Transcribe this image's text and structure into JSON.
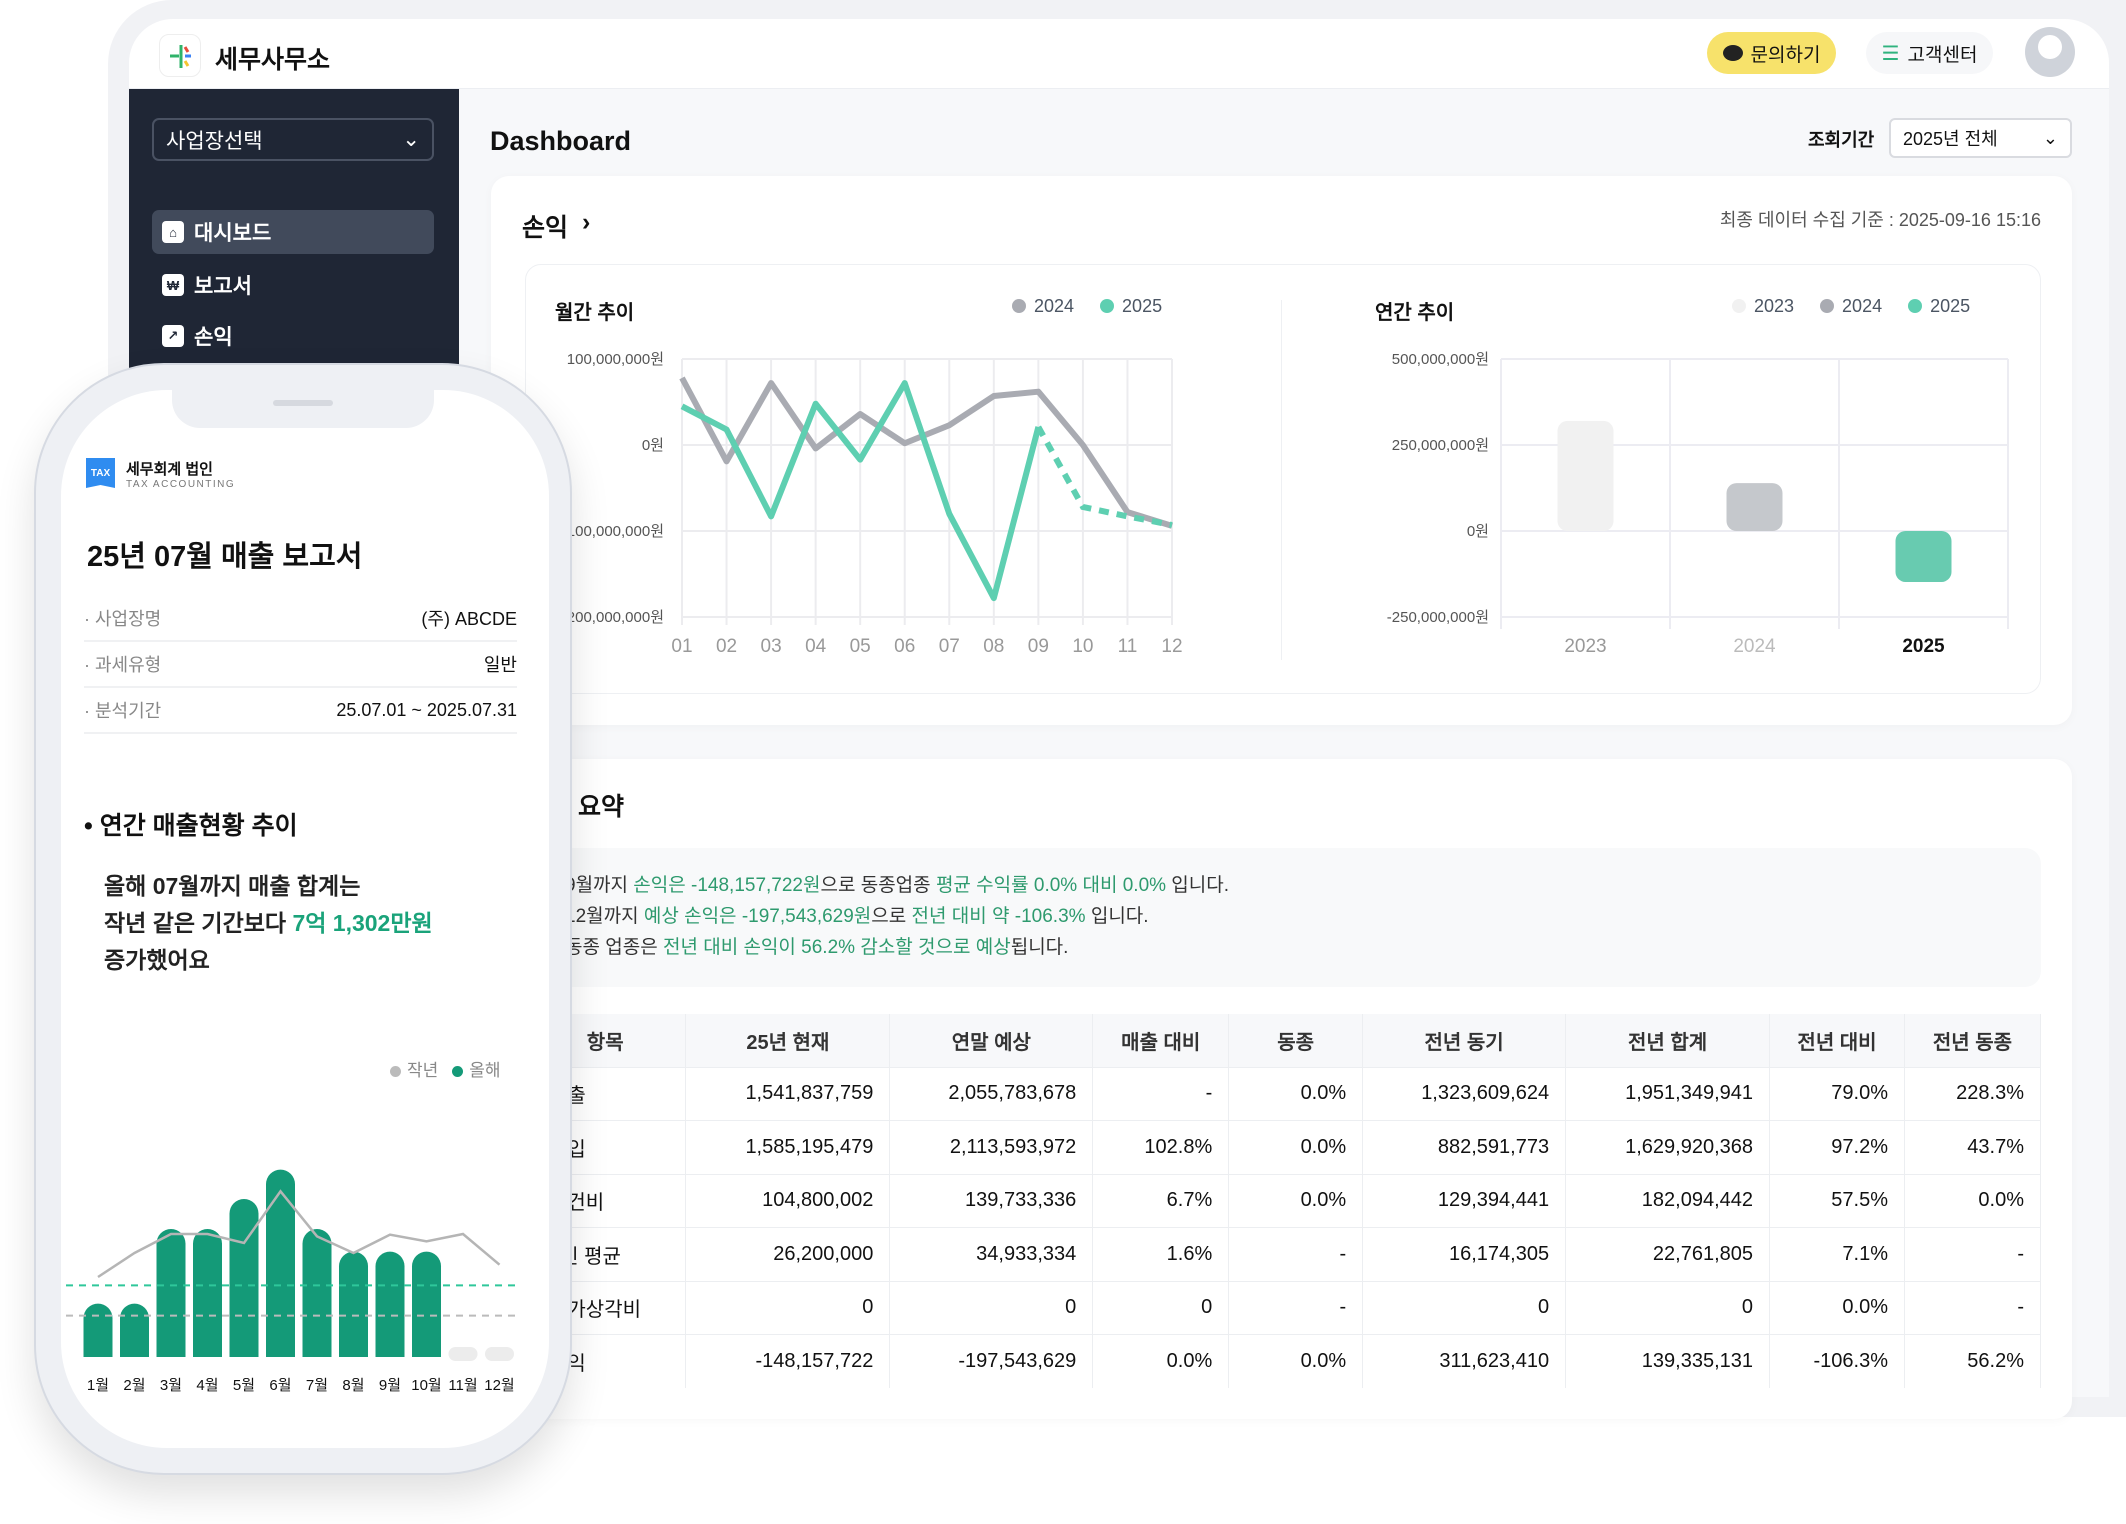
{
  "header": {
    "brand": "세무사무소",
    "ask_label": "문의하기",
    "cs_label": "고객센터"
  },
  "sidebar": {
    "select": "사업장선택",
    "items": [
      {
        "label": "대시보드",
        "icon": "home-icon",
        "active": true
      },
      {
        "label": "보고서",
        "icon": "won-document-icon"
      },
      {
        "label": "손익",
        "icon": "trend-chart-icon"
      }
    ]
  },
  "main": {
    "title": "Dashboard",
    "period_label": "조회기간",
    "period_value": "2025년 전체",
    "profit_card": {
      "title": "손익",
      "timestamp": "최종 데이터 수집 기준 : 2025-09-16 15:16"
    },
    "summary_card": {
      "title": "손익 요약",
      "lines": [
        [
          {
            "t": "9월까지 "
          },
          {
            "t": "손익은 -148,157,722원",
            "g": 1
          },
          {
            "t": "으로 동종업종 "
          },
          {
            "t": "평균 수익률 0.0% 대비 0.0%",
            "g": 1
          },
          {
            "t": " 입니다."
          }
        ],
        [
          {
            "t": "12월까지 "
          },
          {
            "t": "예상 손익은 -197,543,629원",
            "g": 1
          },
          {
            "t": "으로 "
          },
          {
            "t": "전년 대비 약 -106.3%",
            "g": 1
          },
          {
            "t": " 입니다."
          }
        ],
        [
          {
            "t": "동종 업종은 "
          },
          {
            "t": "전년 대비 손익이 56.2% 감소할 것으로 예상",
            "g": 1
          },
          {
            "t": "됩니다."
          }
        ]
      ],
      "table": {
        "headers": [
          "항목",
          "25년 현재",
          "연말 예상",
          "매출 대비",
          "동종",
          "전년 동기",
          "전년 합계",
          "전년 대비",
          "전년 동종"
        ],
        "rows": [
          [
            "매출",
            "1,541,837,759",
            "2,055,783,678",
            "-",
            "0.0%",
            "1,323,609,624",
            "1,951,349,941",
            "79.0%",
            "228.3%"
          ],
          [
            "매입",
            "1,585,195,479",
            "2,113,593,972",
            "102.8%",
            "0.0%",
            "882,591,773",
            "1,629,920,368",
            "97.2%",
            "43.7%"
          ],
          [
            "인건비",
            "104,800,002",
            "139,733,336",
            "6.7%",
            "0.0%",
            "129,394,441",
            "182,094,442",
            "57.5%",
            "0.0%"
          ],
          [
            "1인 평균",
            "26,200,000",
            "34,933,334",
            "1.6%",
            "-",
            "16,174,305",
            "22,761,805",
            "7.1%",
            "-"
          ],
          [
            "감가상각비",
            "0",
            "0",
            "0",
            "-",
            "0",
            "0",
            "0.0%",
            "-"
          ],
          [
            "손익",
            "-148,157,722",
            "-197,543,629",
            "0.0%",
            "0.0%",
            "311,623,410",
            "139,335,131",
            "-106.3%",
            "56.2%"
          ]
        ]
      }
    }
  },
  "colors": {
    "accent": "#5ecfb1",
    "gray_series": "#a9abb2",
    "light_series": "#f0f0f0",
    "phone_bar": "#149a78",
    "sidebar": "#1f2635",
    "ask_button": "#f7e26b"
  },
  "chart_data": [
    {
      "type": "line",
      "title": "월간 추이",
      "x": [
        "01",
        "02",
        "03",
        "04",
        "05",
        "06",
        "07",
        "08",
        "09",
        "10",
        "11",
        "12"
      ],
      "yticks": [
        "100,000,000원",
        "0원",
        "-100,000,000원",
        "-200,000,000원"
      ],
      "ylim": [
        -200000000,
        100000000
      ],
      "grid": true,
      "legend": "top-right",
      "series": [
        {
          "name": "2024",
          "color": "#a9abb2",
          "values": [
            78000000,
            -19000000,
            72000000,
            -4000000,
            36000000,
            2000000,
            23000000,
            57000000,
            62000000,
            0,
            -78000000,
            -94000000
          ]
        },
        {
          "name": "2025",
          "color": "#5ecfb1",
          "values": [
            45000000,
            18000000,
            -83000000,
            48000000,
            -17000000,
            72000000,
            -80000000,
            -178000000,
            21000000,
            -72000000,
            -83000000,
            -93000000
          ],
          "forecast_from_index": 8
        }
      ]
    },
    {
      "type": "bar",
      "title": "연간 추이",
      "categories": [
        "2023",
        "2024",
        "2025"
      ],
      "values": [
        320000000,
        139335131,
        -148157722
      ],
      "colors": [
        "#f1f1f1",
        "#c5c8cc",
        "#68cbb0"
      ],
      "yticks": [
        "500,000,000원",
        "250,000,000원",
        "0원",
        "-250,000,000원"
      ],
      "ylim": [
        -250000000,
        500000000
      ],
      "grid": true,
      "legend": "top-right",
      "legend_entries": [
        "2023",
        "2024",
        "2025"
      ]
    }
  ],
  "phone": {
    "firm_name": "세무회계 법인",
    "firm_sub": "TAX ACCOUNTING",
    "logo_text": "TAX",
    "title": "25년 07월 매출 보고서",
    "info": [
      {
        "label": "· 사업장명",
        "value": "(주) ABCDE"
      },
      {
        "label": "· 과세유형",
        "value": "일반"
      },
      {
        "label": "· 분석기간",
        "value": "25.07.01 ~ 2025.07.31"
      }
    ],
    "section": "• 연간 매출현황 추이",
    "line1": "올해 07월까지 매출 합계는",
    "line2_pre": "작년 같은 기간보다 ",
    "line2_hl": "7억 1,302만원",
    "line3": "증가했어요",
    "chart": {
      "type": "bar",
      "legend": [
        "작년",
        "올해"
      ],
      "months": [
        "1월",
        "2월",
        "3월",
        "4월",
        "5월",
        "6월",
        "7월",
        "8월",
        "9월",
        "10월",
        "11월",
        "12월"
      ],
      "this_year": [
        160,
        160,
        384,
        384,
        474,
        562,
        384,
        316,
        316,
        316,
        null,
        null
      ],
      "last_year": [
        240,
        312,
        369,
        369,
        342,
        497,
        362,
        312,
        367,
        347,
        369,
        277
      ],
      "this_year_avg": 215,
      "last_year_avg": 124
    }
  }
}
